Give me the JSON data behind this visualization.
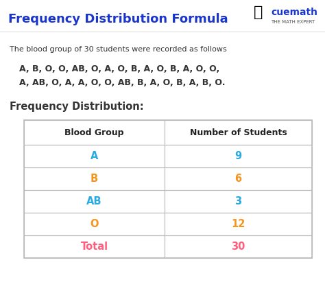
{
  "title": "Frequency Distribution Formula",
  "title_color": "#1a35cc",
  "title_fontsize": 13,
  "bg_color": "#ffffff",
  "description": "The blood group of 30 students were recorded as follows",
  "data_line1": "A, B, O, O, AB, O, A, O, B, A, O, B, A, O, O,",
  "data_line2": "A, AB, O, A, A, O, O, AB, B, A, O, B, A, B, O.",
  "freq_dist_label": "Frequency Distribution:",
  "col_headers": [
    "Blood Group",
    "Number of Students"
  ],
  "table_data": [
    [
      "A",
      "9"
    ],
    [
      "B",
      "6"
    ],
    [
      "AB",
      "3"
    ],
    [
      "O",
      "12"
    ],
    [
      "Total",
      "30"
    ]
  ],
  "row_colors_col1": [
    "#29abe2",
    "#f7941d",
    "#29abe2",
    "#f7941d",
    "#ff5f7e"
  ],
  "row_colors_col2": [
    "#29abe2",
    "#f7941d",
    "#29abe2",
    "#f7941d",
    "#ff5f7e"
  ],
  "header_color": "#222222",
  "text_color": "#333333",
  "table_border_color": "#bbbbbb",
  "cuemath_color": "#f7941d",
  "cuemath_text_color": "#1a35cc",
  "cuemath_sub_color": "#555555"
}
